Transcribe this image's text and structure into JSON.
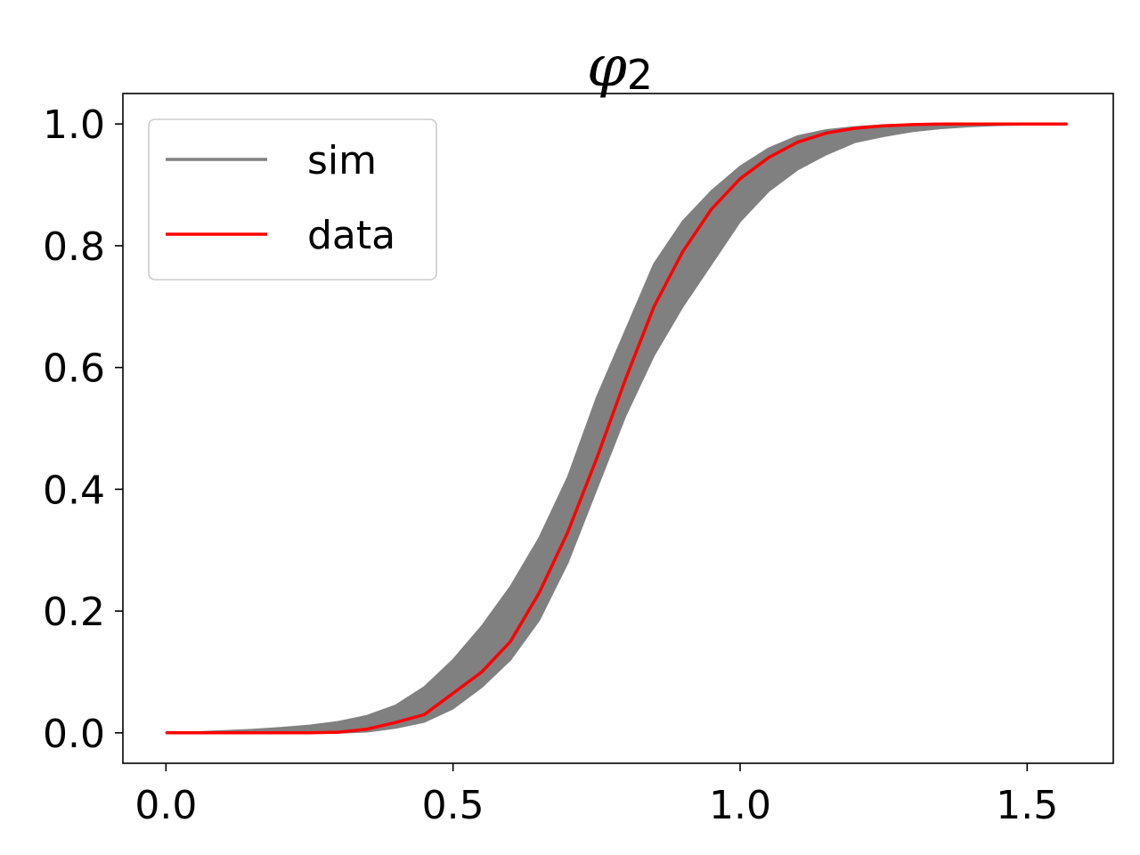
{
  "chart_data": {
    "type": "line",
    "title": "φ",
    "title_subscript": "2",
    "xlabel": "",
    "ylabel": "",
    "xlim": [
      -0.075,
      1.65
    ],
    "ylim": [
      -0.05,
      1.05
    ],
    "xticks": [
      0.0,
      0.5,
      1.0,
      1.5
    ],
    "xtick_labels": [
      "0.0",
      "0.5",
      "1.0",
      "1.5"
    ],
    "yticks": [
      0.0,
      0.2,
      0.4,
      0.6,
      0.8,
      1.0
    ],
    "ytick_labels": [
      "0.0",
      "0.2",
      "0.4",
      "0.6",
      "0.8",
      "1.0"
    ],
    "grid": false,
    "legend": {
      "position": "upper-left",
      "entries": [
        {
          "label": "sim",
          "color": "#808080"
        },
        {
          "label": "data",
          "color": "#ff0000"
        }
      ]
    },
    "series": [
      {
        "name": "sim",
        "kind": "band",
        "color": "#808080",
        "x": [
          0.0,
          0.05,
          0.1,
          0.15,
          0.2,
          0.25,
          0.3,
          0.35,
          0.4,
          0.45,
          0.5,
          0.55,
          0.6,
          0.65,
          0.7,
          0.75,
          0.8,
          0.85,
          0.9,
          0.95,
          1.0,
          1.05,
          1.1,
          1.15,
          1.2,
          1.25,
          1.3,
          1.35,
          1.4,
          1.45,
          1.5,
          1.57
        ],
        "lower": [
          0.0,
          0.0,
          0.0,
          0.0,
          0.0,
          0.0,
          0.0,
          0.002,
          0.008,
          0.018,
          0.04,
          0.075,
          0.12,
          0.185,
          0.28,
          0.4,
          0.52,
          0.62,
          0.7,
          0.77,
          0.84,
          0.89,
          0.925,
          0.95,
          0.97,
          0.98,
          0.988,
          0.993,
          0.996,
          0.998,
          0.999,
          1.0
        ],
        "upper": [
          0.0,
          0.001,
          0.003,
          0.005,
          0.008,
          0.012,
          0.018,
          0.028,
          0.045,
          0.075,
          0.12,
          0.175,
          0.24,
          0.32,
          0.42,
          0.55,
          0.66,
          0.77,
          0.84,
          0.89,
          0.93,
          0.96,
          0.98,
          0.99,
          0.995,
          0.998,
          0.999,
          1.0,
          1.0,
          1.0,
          1.0,
          1.0
        ]
      },
      {
        "name": "data",
        "kind": "line",
        "color": "#ff0000",
        "x": [
          0.0,
          0.05,
          0.1,
          0.15,
          0.2,
          0.25,
          0.3,
          0.35,
          0.4,
          0.45,
          0.5,
          0.55,
          0.6,
          0.65,
          0.7,
          0.75,
          0.8,
          0.85,
          0.9,
          0.95,
          1.0,
          1.05,
          1.1,
          1.15,
          1.2,
          1.25,
          1.3,
          1.35,
          1.4,
          1.45,
          1.5,
          1.57
        ],
        "y": [
          0.0,
          0.0,
          0.0,
          0.0,
          0.0,
          0.0,
          0.001,
          0.006,
          0.017,
          0.03,
          0.065,
          0.1,
          0.15,
          0.23,
          0.33,
          0.45,
          0.58,
          0.7,
          0.79,
          0.86,
          0.91,
          0.945,
          0.97,
          0.985,
          0.993,
          0.997,
          0.999,
          1.0,
          1.0,
          1.0,
          1.0,
          1.0
        ]
      }
    ]
  }
}
